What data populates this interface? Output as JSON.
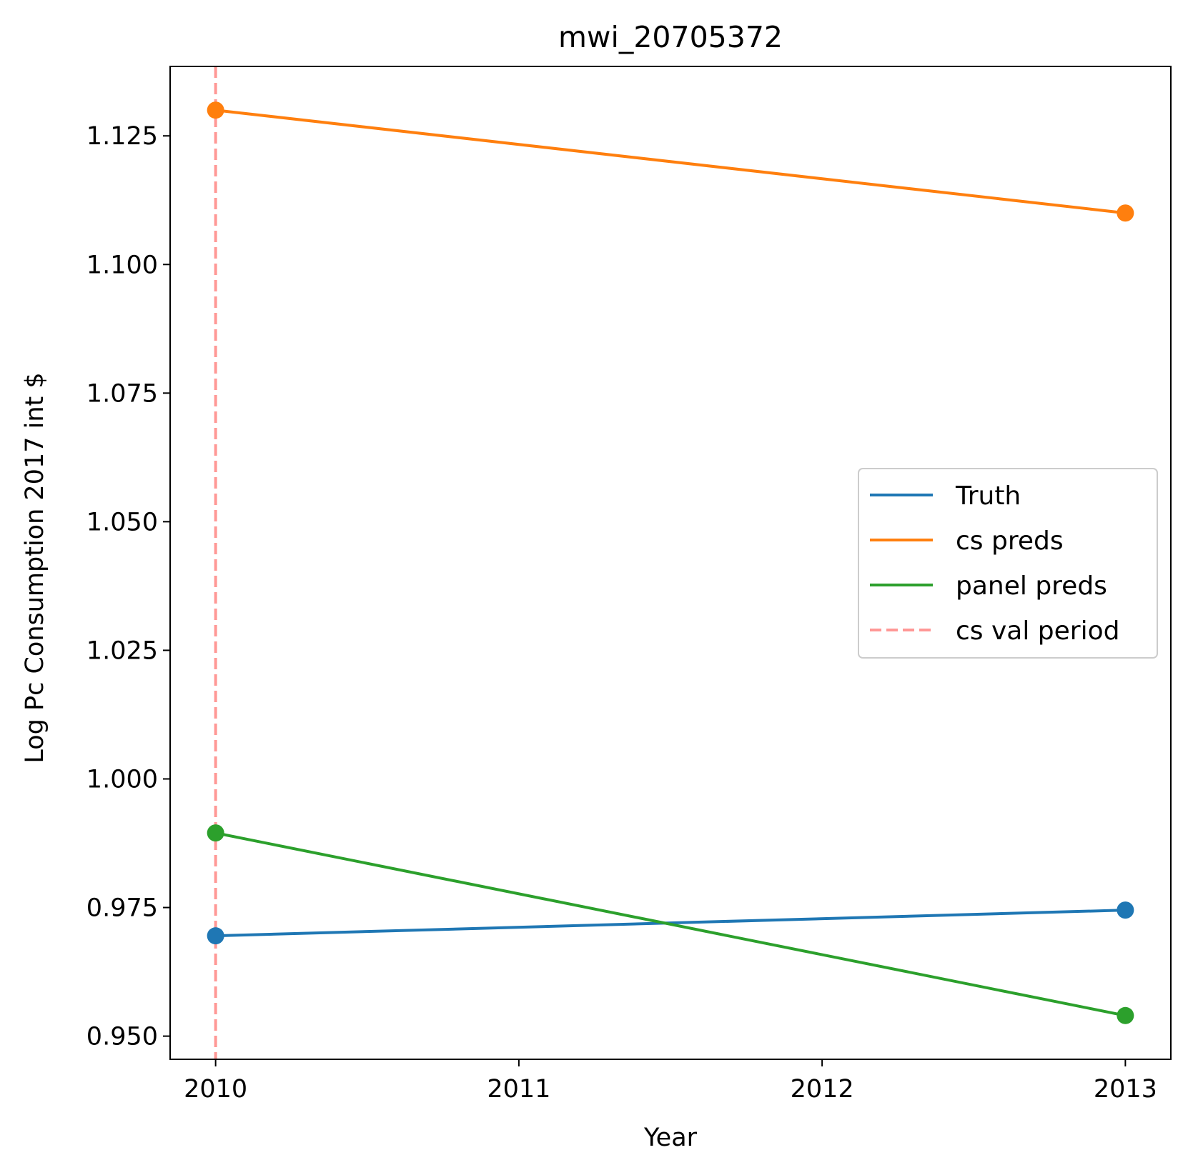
{
  "chart_data": {
    "type": "line",
    "title": "mwi_20705372",
    "xlabel": "Year",
    "ylabel": "Log Pc Consumption 2017 int $",
    "xlim": [
      2009.85,
      2013.15
    ],
    "ylim": [
      0.9455,
      1.1385
    ],
    "xticks": [
      2010,
      2011,
      2012,
      2013
    ],
    "xtick_labels": [
      "2010",
      "2011",
      "2012",
      "2013"
    ],
    "yticks": [
      0.95,
      0.975,
      1.0,
      1.025,
      1.05,
      1.075,
      1.1,
      1.125
    ],
    "ytick_labels": [
      "0.950",
      "0.975",
      "1.000",
      "1.025",
      "1.050",
      "1.075",
      "1.100",
      "1.125"
    ],
    "grid": false,
    "legend_position": "center-right",
    "series": [
      {
        "name": "Truth",
        "color": "#1f77b4",
        "style": "solid",
        "marker": "circle",
        "x": [
          2010,
          2013
        ],
        "y": [
          0.9695,
          0.9745
        ]
      },
      {
        "name": "cs preds",
        "color": "#ff7f0e",
        "style": "solid",
        "marker": "circle",
        "x": [
          2010,
          2013
        ],
        "y": [
          1.13,
          1.11
        ]
      },
      {
        "name": "panel preds",
        "color": "#2ca02c",
        "style": "solid",
        "marker": "circle",
        "x": [
          2010,
          2013
        ],
        "y": [
          0.9895,
          0.954
        ]
      }
    ],
    "vlines": [
      {
        "name": "cs val period",
        "x": 2010,
        "color": "#ff9896",
        "style": "dashed"
      }
    ]
  }
}
